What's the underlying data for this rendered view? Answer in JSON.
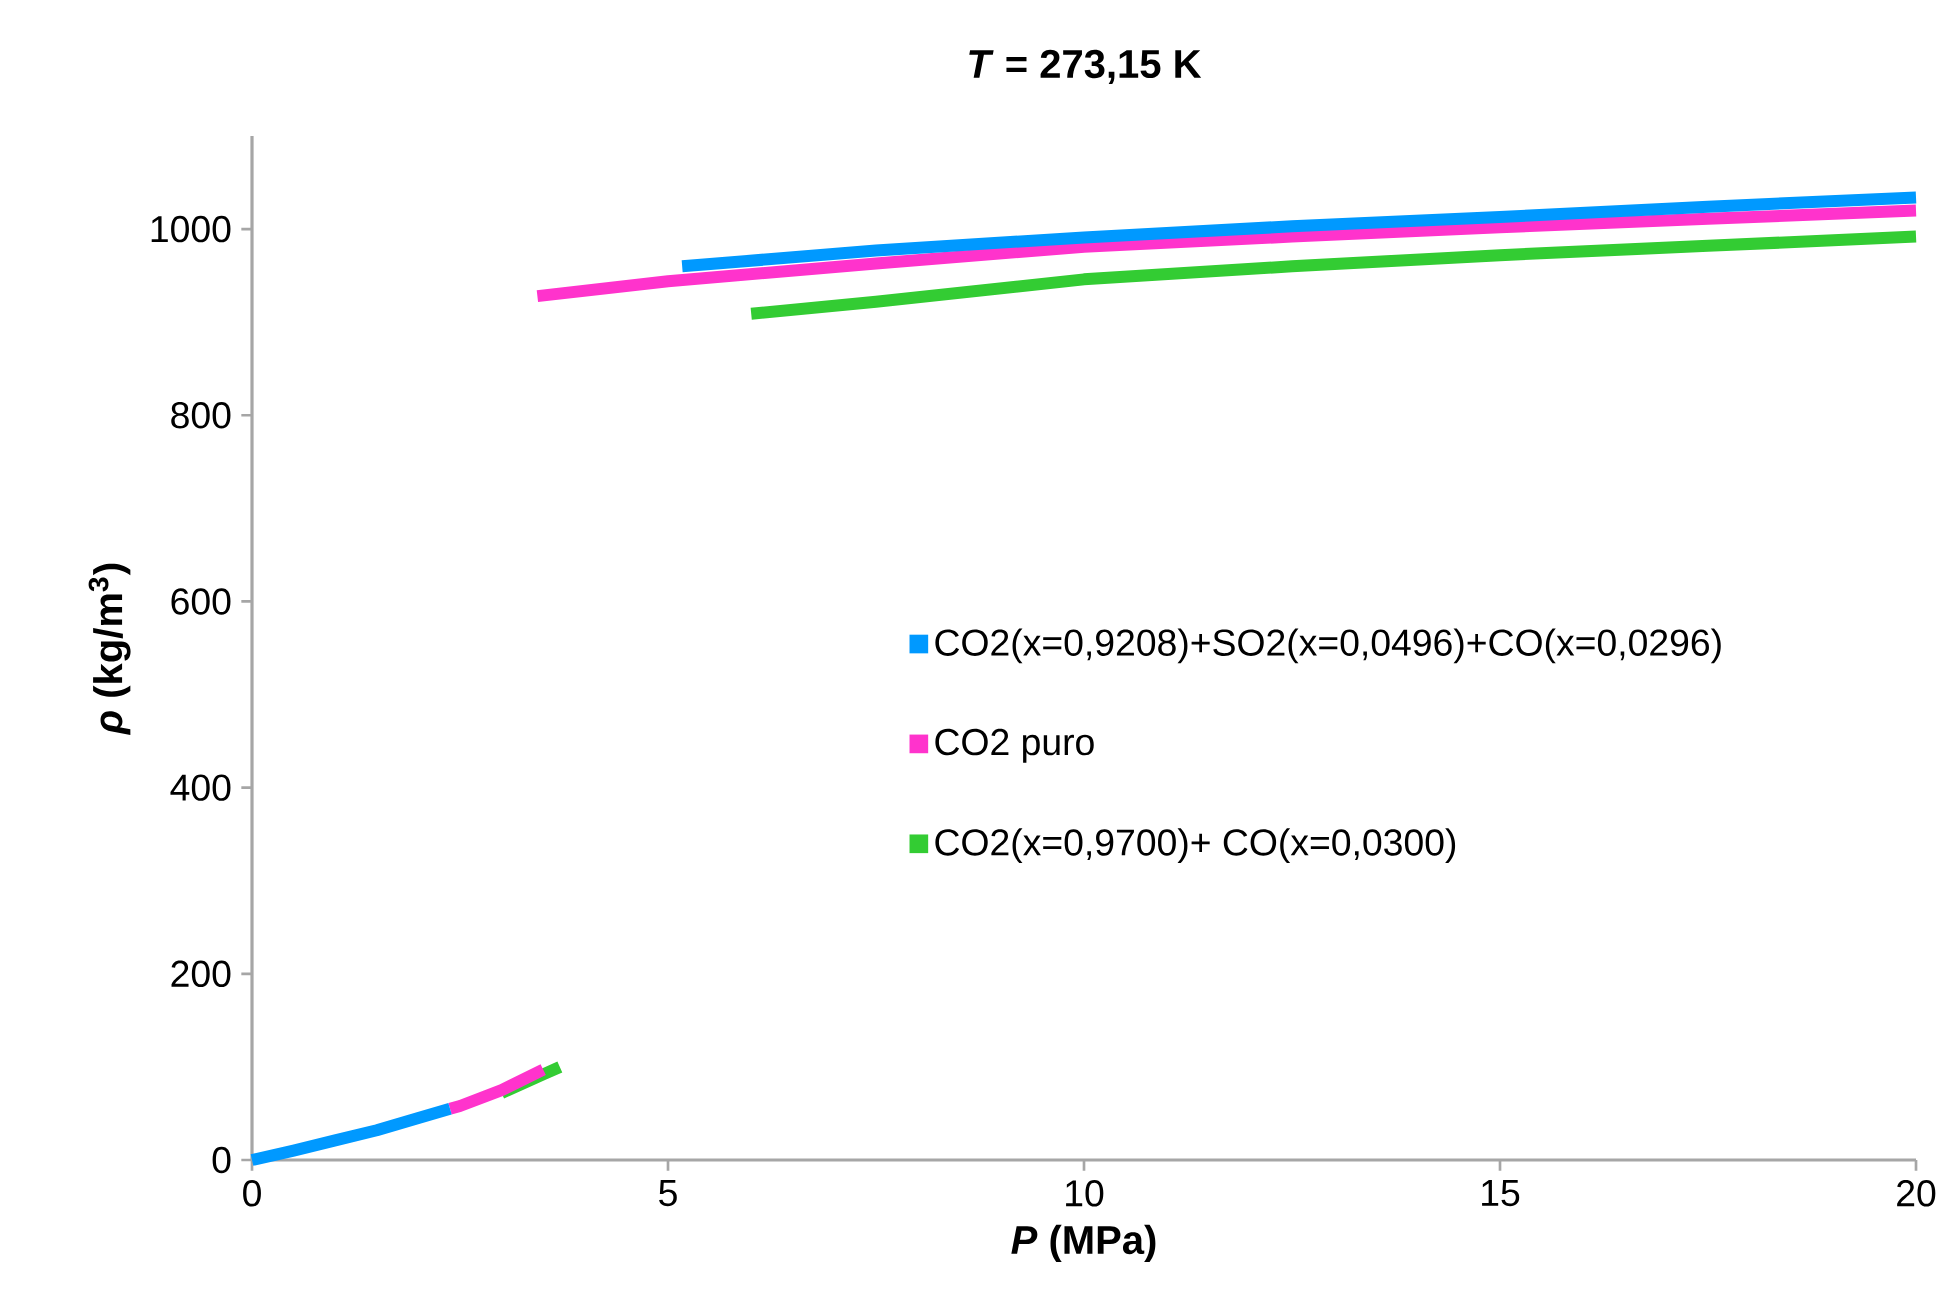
{
  "chart_data": {
    "type": "line",
    "title": "*T* = 273,15 K",
    "xlabel": "*P* (MPa)",
    "ylabel": "*ρ* (kg/m$^{3}$)",
    "xlim": [
      0,
      20
    ],
    "xticks": [
      0,
      5,
      10,
      15,
      20
    ],
    "ylim": [
      0,
      1100
    ],
    "yticks": [
      0,
      200,
      400,
      600,
      800,
      1000
    ],
    "grid": false,
    "legend": "right",
    "series": [
      {
        "name": "CO2(x=0,9700)+  CO(x=0,0300)",
        "color": "#33cc33",
        "x": [
          3,
          3.5,
          3.7,
          null,
          6,
          7.5,
          10,
          12.5,
          15,
          17.5,
          20
        ],
        "values": [
          72,
          92,
          100,
          null,
          909,
          922,
          946,
          960,
          972,
          982,
          992
        ]
      },
      {
        "name": "CO2 puro",
        "color": "#ff33cc",
        "x": [
          2.38,
          2.5,
          3,
          3.5,
          null,
          3.43,
          5,
          7.5,
          10,
          12.5,
          15,
          17.5,
          20
        ],
        "values": [
          55,
          58,
          75,
          97,
          null,
          928,
          944,
          963,
          981,
          992,
          1002,
          1011,
          1020
        ]
      },
      {
        "name": "CO2(x=0,9208)+SO2(x=0,0496)+CO(x=0,0296)",
        "color": "#0099ff",
        "x": [
          0,
          0.5,
          1,
          1.5,
          2,
          2.38,
          null,
          5.17,
          7.5,
          10,
          12.5,
          15,
          17.5,
          20
        ],
        "values": [
          0,
          10,
          21,
          32,
          45,
          55,
          null,
          960,
          977,
          991,
          1003,
          1013,
          1024,
          1034
        ]
      }
    ]
  }
}
